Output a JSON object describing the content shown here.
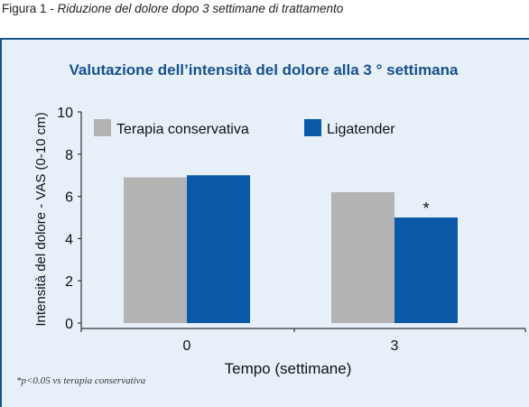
{
  "caption": {
    "prefix": "Figura 1 - ",
    "title": "Riduzione del dolore dopo 3 settimane di trattamento"
  },
  "footnote": "*p<0.05 vs terapia conservativa",
  "colors": {
    "panel_background": "#e7f0f9",
    "panel_border": "#17508f",
    "title_color": "#17508f",
    "axis_color": "#333333"
  },
  "chart_data": {
    "type": "bar",
    "title": "Valutazione dell’intensità del dolore alla 3 ° settimana",
    "xlabel": "Tempo (settimane)",
    "ylabel": "Intensità del dolore - VAS (0-10 cm)",
    "categories": [
      "0",
      "3"
    ],
    "ylim": [
      0,
      10
    ],
    "yticks": [
      0,
      2,
      4,
      6,
      8,
      10
    ],
    "grid": false,
    "legend_position": "top",
    "series": [
      {
        "name": "Terapia conservativa",
        "color": "#b3b3b3",
        "values": [
          6.9,
          6.2
        ]
      },
      {
        "name": "Ligatender",
        "color": "#0b5aa8",
        "values": [
          7.0,
          5.0
        ]
      }
    ],
    "annotations": [
      {
        "category": "3",
        "series": "Ligatender",
        "text": "*"
      }
    ]
  }
}
